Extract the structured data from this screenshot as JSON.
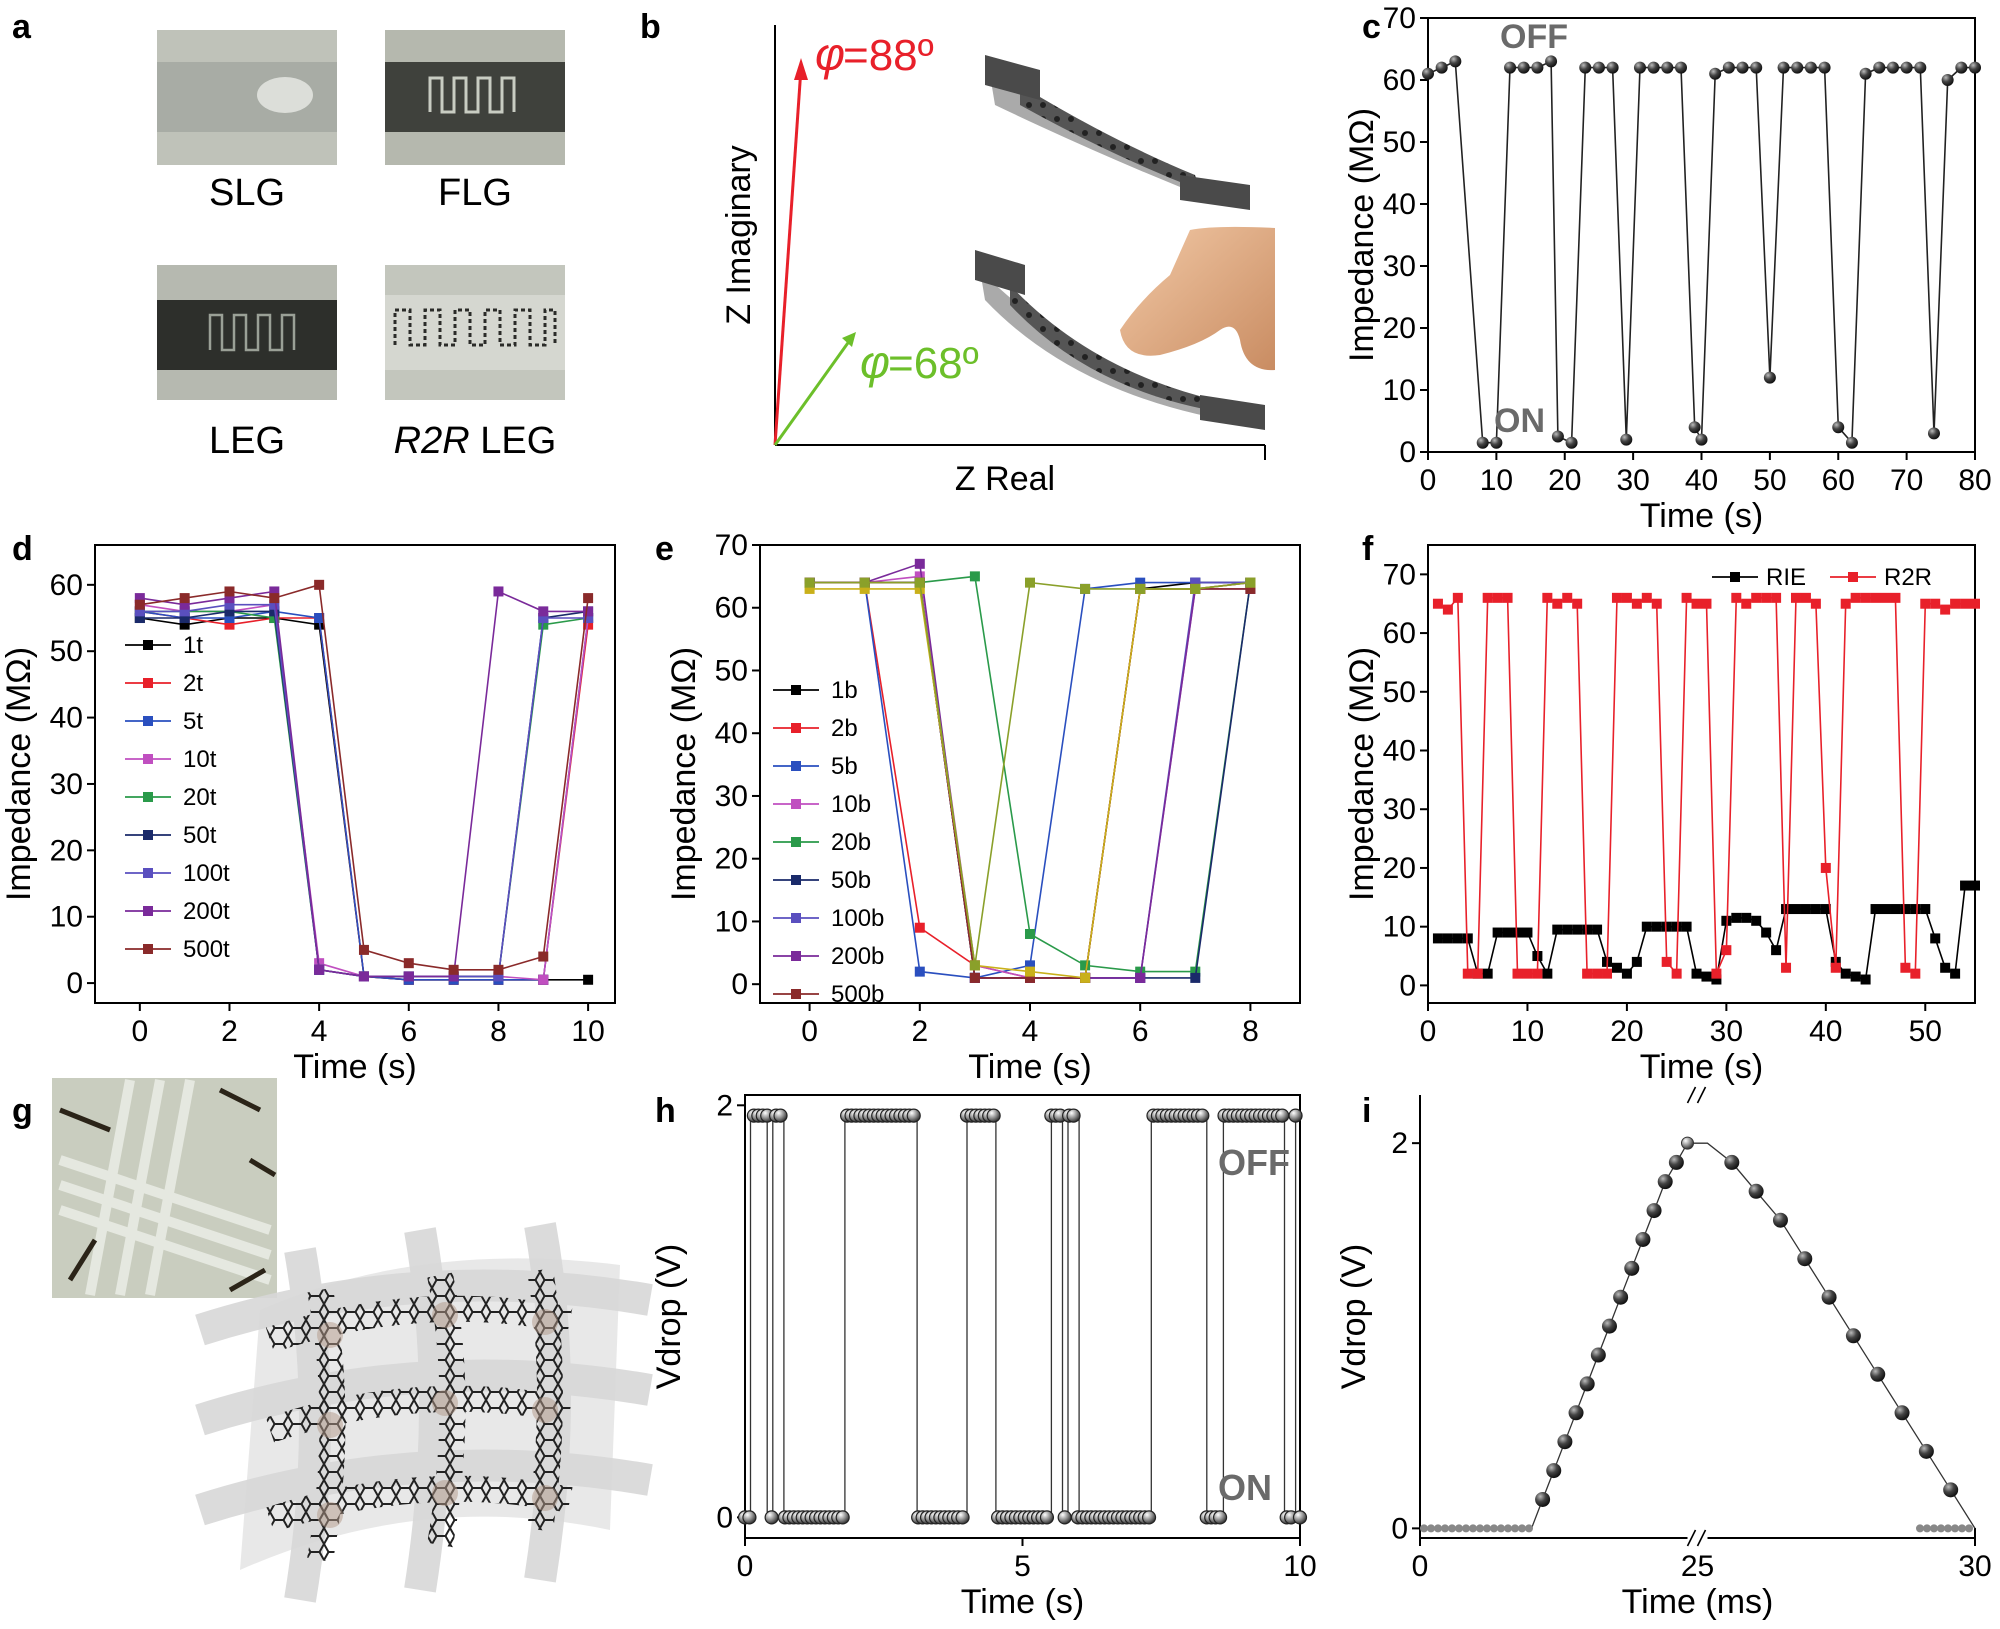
{
  "panels": {
    "a": {
      "label": "a",
      "captions": [
        "SLG",
        "FLG",
        "LEG"
      ],
      "caption_r2r_italic": "R2R",
      "caption_r2r_rest": " LEG"
    },
    "b": {
      "label": "b",
      "xlabel": "Z Real",
      "ylabel": "Z Imaginary",
      "phi1_sym": "φ",
      "phi1_val": "=88º",
      "phi2_sym": "φ",
      "phi2_val": "=68º",
      "phi1_color": "#e8202a",
      "phi2_color": "#6cbf2a"
    },
    "c": {
      "label": "c",
      "ann_off": "OFF",
      "ann_on": "ON"
    },
    "d": {
      "label": "d"
    },
    "e": {
      "label": "e"
    },
    "f": {
      "label": "f"
    },
    "g": {
      "label": "g"
    },
    "h": {
      "label": "h",
      "ann_off": "OFF",
      "ann_on": "ON"
    },
    "i": {
      "label": "i"
    }
  },
  "chart_data": [
    {
      "panel": "c",
      "type": "line",
      "xlabel": "Time (s)",
      "ylabel": "Impedance (MΩ)",
      "xlim": [
        0,
        80
      ],
      "ylim": [
        0,
        70
      ],
      "xticks": [
        0,
        10,
        20,
        30,
        40,
        50,
        60,
        70,
        80
      ],
      "yticks": [
        0,
        10,
        20,
        30,
        40,
        50,
        60,
        70
      ],
      "series": [
        {
          "color": "#222222",
          "x": [
            0,
            2,
            4,
            8,
            10,
            12,
            14,
            16,
            18,
            19,
            21,
            23,
            25,
            27,
            29,
            31,
            33,
            35,
            37,
            39,
            40,
            42,
            44,
            46,
            48,
            50,
            52,
            54,
            56,
            58,
            60,
            62,
            64,
            66,
            68,
            70,
            72,
            74,
            76,
            78,
            80
          ],
          "y": [
            61,
            62,
            63,
            1.5,
            1.5,
            62,
            62,
            62,
            63,
            2.5,
            1.5,
            62,
            62,
            62,
            2,
            62,
            62,
            62,
            62,
            4,
            2,
            61,
            62,
            62,
            62,
            12,
            62,
            62,
            62,
            62,
            4,
            1.5,
            61,
            62,
            62,
            62,
            62,
            3,
            60,
            62,
            62
          ]
        }
      ]
    },
    {
      "panel": "d",
      "type": "line",
      "xlabel": "Time (s)",
      "ylabel": "Impedance (MΩ)",
      "xlim": [
        -1,
        10.6
      ],
      "ylim": [
        -3,
        66
      ],
      "xticks": [
        0,
        2,
        4,
        6,
        8,
        10
      ],
      "yticks": [
        0,
        10,
        20,
        30,
        40,
        50,
        60
      ],
      "legend_position": "left",
      "series": [
        {
          "name": "1t",
          "color": "#000000",
          "x": [
            0,
            1,
            2,
            3,
            4,
            5,
            6,
            7,
            8,
            9,
            10
          ],
          "y": [
            55,
            54,
            55,
            55,
            54,
            1,
            0.5,
            0.5,
            0.5,
            0.5,
            0.5
          ]
        },
        {
          "name": "2t",
          "color": "#e8202a",
          "x": [
            0,
            1,
            2,
            3,
            4,
            5,
            6,
            7,
            8,
            9,
            10
          ],
          "y": [
            56,
            55,
            54,
            55,
            55,
            1,
            0.5,
            0.5,
            0.5,
            0.5,
            54
          ]
        },
        {
          "name": "5t",
          "color": "#2a4fbf",
          "x": [
            0,
            1,
            2,
            3,
            4,
            5,
            6,
            7,
            8,
            9,
            10
          ],
          "y": [
            56,
            55,
            55,
            56,
            55,
            1,
            0.5,
            0.5,
            0.5,
            0.5,
            55
          ]
        },
        {
          "name": "10t",
          "color": "#c04fc0",
          "x": [
            0,
            1,
            2,
            3,
            4,
            5,
            6,
            7,
            8,
            9,
            10
          ],
          "y": [
            57,
            56,
            56,
            57,
            3,
            1,
            1,
            1,
            1,
            0.5,
            55
          ]
        },
        {
          "name": "20t",
          "color": "#2a9a4a",
          "x": [
            0,
            1,
            2,
            3,
            4,
            5,
            6,
            7,
            8,
            9,
            10
          ],
          "y": [
            56,
            56,
            56,
            55,
            2,
            1,
            1,
            1,
            1,
            54,
            55
          ]
        },
        {
          "name": "50t",
          "color": "#1a2a6a",
          "x": [
            0,
            1,
            2,
            3,
            4,
            5,
            6,
            7,
            8,
            9,
            10
          ],
          "y": [
            55,
            55,
            56,
            56,
            2,
            1,
            1,
            1,
            1,
            55,
            56
          ]
        },
        {
          "name": "100t",
          "color": "#5a4fbf",
          "x": [
            0,
            1,
            2,
            3,
            4,
            5,
            6,
            7,
            8,
            9,
            10
          ],
          "y": [
            56,
            56,
            57,
            57,
            2,
            1,
            1,
            1,
            1,
            55,
            55
          ]
        },
        {
          "name": "200t",
          "color": "#7a2a9a",
          "x": [
            0,
            1,
            2,
            3,
            4,
            5,
            6,
            7,
            8,
            9,
            10
          ],
          "y": [
            58,
            57,
            58,
            59,
            2,
            1,
            1,
            1,
            59,
            56,
            56
          ]
        },
        {
          "name": "500t",
          "color": "#8a2a2a",
          "x": [
            0,
            1,
            2,
            3,
            4,
            5,
            6,
            7,
            8,
            9,
            10
          ],
          "y": [
            57,
            58,
            59,
            58,
            60,
            5,
            3,
            2,
            2,
            4,
            58
          ]
        }
      ]
    },
    {
      "panel": "e",
      "type": "line",
      "xlabel": "Time (s)",
      "ylabel": "Impedance (MΩ)",
      "xlim": [
        -0.9,
        8.9
      ],
      "ylim": [
        -3,
        70
      ],
      "xticks": [
        0,
        2,
        4,
        6,
        8
      ],
      "yticks": [
        0,
        10,
        20,
        30,
        40,
        50,
        60,
        70
      ],
      "legend_position": "left",
      "series": [
        {
          "name": "1b",
          "color": "#000000",
          "x": [
            0,
            1,
            2,
            3,
            4,
            5,
            6,
            7,
            8
          ],
          "y": [
            64,
            64,
            64,
            1,
            1,
            1,
            63,
            64,
            64
          ]
        },
        {
          "name": "2b",
          "color": "#e8202a",
          "x": [
            0,
            1,
            2,
            3,
            4,
            5,
            6,
            7,
            8
          ],
          "y": [
            64,
            64,
            9,
            3,
            1,
            1,
            63,
            63,
            64
          ]
        },
        {
          "name": "5b",
          "color": "#2a4fbf",
          "x": [
            0,
            1,
            2,
            3,
            4,
            5,
            6,
            7,
            8
          ],
          "y": [
            64,
            64,
            2,
            1,
            3,
            63,
            64,
            64,
            64
          ]
        },
        {
          "name": "10b",
          "color": "#c04fc0",
          "x": [
            0,
            1,
            2,
            3,
            4,
            5,
            6,
            7,
            8
          ],
          "y": [
            64,
            64,
            65,
            3,
            1,
            1,
            1,
            63,
            64
          ]
        },
        {
          "name": "20b",
          "color": "#2a9a4a",
          "x": [
            0,
            1,
            2,
            3,
            4,
            5,
            6,
            7,
            8
          ],
          "y": [
            64,
            64,
            64,
            65,
            8,
            3,
            2,
            2,
            64
          ]
        },
        {
          "name": "50b",
          "color": "#1a2a6a",
          "x": [
            0,
            1,
            2,
            3,
            4,
            5,
            6,
            7,
            8
          ],
          "y": [
            64,
            64,
            64,
            1,
            1,
            1,
            1,
            1,
            64
          ]
        },
        {
          "name": "100b",
          "color": "#5a4fbf",
          "x": [
            0,
            1,
            2,
            3,
            4,
            5,
            6,
            7,
            8
          ],
          "y": [
            64,
            64,
            64,
            1,
            1,
            1,
            1,
            64,
            64
          ]
        },
        {
          "name": "200b",
          "color": "#7a2a9a",
          "x": [
            0,
            1,
            2,
            3,
            4,
            5,
            6,
            7,
            8
          ],
          "y": [
            64,
            64,
            67,
            1,
            1,
            1,
            1,
            63,
            63
          ]
        },
        {
          "name": "500b",
          "color": "#8a2a2a",
          "x": [
            0,
            1,
            2,
            3,
            4,
            5,
            6,
            7,
            8
          ],
          "y": [
            64,
            64,
            64,
            1,
            1,
            1,
            63,
            63,
            63
          ]
        },
        {
          "name": "",
          "color": "#c9b01a",
          "x": [
            0,
            1,
            2,
            3,
            4,
            5,
            6,
            7,
            8
          ],
          "y": [
            63,
            63,
            63,
            3,
            2,
            1,
            63,
            63,
            64
          ]
        },
        {
          "name": "",
          "color": "#8aa02a",
          "x": [
            0,
            1,
            2,
            3,
            4,
            5,
            6,
            7,
            8
          ],
          "y": [
            64,
            64,
            64,
            3,
            64,
            63,
            63,
            63,
            64
          ]
        }
      ]
    },
    {
      "panel": "f",
      "type": "line",
      "xlabel": "Time (s)",
      "ylabel": "Impedance (MΩ)",
      "xlim": [
        0,
        55
      ],
      "ylim": [
        -3,
        75
      ],
      "xticks": [
        0,
        10,
        20,
        30,
        40,
        50
      ],
      "yticks": [
        0,
        10,
        20,
        30,
        40,
        50,
        60,
        70
      ],
      "legend_position": "top-right",
      "series": [
        {
          "name": "RIE",
          "color": "#000000",
          "x": [
            1,
            2,
            3,
            4,
            5,
            6,
            7,
            8,
            9,
            10,
            11,
            12,
            13,
            14,
            15,
            16,
            17,
            18,
            19,
            20,
            21,
            22,
            23,
            24,
            25,
            26,
            27,
            28,
            29,
            30,
            31,
            32,
            33,
            34,
            35,
            36,
            37,
            38,
            39,
            40,
            41,
            42,
            43,
            44,
            45,
            46,
            47,
            48,
            49,
            50,
            51,
            52,
            53,
            54,
            55
          ],
          "y": [
            8,
            8,
            8,
            8,
            2,
            2,
            9,
            9,
            9,
            9,
            5,
            2,
            9.5,
            9.5,
            9.5,
            9.5,
            9.5,
            4,
            3,
            2,
            4,
            10,
            10,
            10,
            10,
            10,
            2,
            1.5,
            1,
            11,
            11.5,
            11.5,
            11,
            9,
            6,
            13,
            13,
            13,
            13,
            13,
            4,
            2,
            1.5,
            1,
            13,
            13,
            13,
            13,
            13,
            13,
            8,
            3,
            2,
            17,
            17
          ]
        },
        {
          "name": "R2R",
          "color": "#e8202a",
          "x": [
            1,
            2,
            3,
            4,
            5,
            6,
            7,
            8,
            9,
            10,
            11,
            12,
            13,
            14,
            15,
            16,
            17,
            18,
            19,
            20,
            21,
            22,
            23,
            24,
            25,
            26,
            27,
            28,
            29,
            30,
            31,
            32,
            33,
            34,
            35,
            36,
            37,
            38,
            39,
            40,
            41,
            42,
            43,
            44,
            45,
            46,
            47,
            48,
            49,
            50,
            51,
            52,
            53,
            54,
            55
          ],
          "y": [
            65,
            64,
            66,
            2,
            2,
            66,
            66,
            66,
            2,
            2,
            2,
            66,
            65,
            66,
            65,
            2,
            2,
            2,
            66,
            66,
            65,
            66,
            65,
            4,
            2,
            66,
            65,
            65,
            2,
            6,
            66,
            65,
            66,
            66,
            66,
            3,
            66,
            66,
            65,
            20,
            3,
            65,
            66,
            66,
            66,
            66,
            66,
            3,
            2,
            65,
            65,
            64,
            65,
            65,
            65
          ]
        }
      ]
    },
    {
      "panel": "h",
      "type": "scatter",
      "xlabel": "Time (s)",
      "ylabel": "Vdrop (V)",
      "xlim": [
        0,
        10
      ],
      "ylim": [
        -0.1,
        2.05
      ],
      "xticks": [
        0,
        5,
        10
      ],
      "yticks": [
        0,
        2
      ],
      "high_intervals": [
        [
          0.1,
          0.4
        ],
        [
          0.5,
          0.7
        ],
        [
          1.8,
          3.1
        ],
        [
          4.0,
          4.5
        ],
        [
          5.5,
          5.7
        ],
        [
          5.8,
          6.0
        ],
        [
          7.3,
          8.3
        ],
        [
          8.6,
          9.7
        ],
        [
          9.9,
          10
        ]
      ],
      "low_level": 0.0,
      "high_level": 1.95
    },
    {
      "panel": "i",
      "type": "scatter",
      "xlabel": "Time (ms)",
      "ylabel": "Vdrop (V)",
      "xlim": [
        0,
        30
      ],
      "ylim": [
        -0.05,
        2.25
      ],
      "xticks": [
        0,
        25,
        30
      ],
      "yticks": [
        0,
        2
      ],
      "axis_break": "//",
      "x": [
        0,
        0.5,
        1,
        1.5,
        2,
        2.5,
        3,
        3.5,
        4,
        4.5,
        5,
        5.5,
        6,
        6.5,
        7,
        7.5,
        8,
        8.5,
        9,
        9.5,
        10,
        10.5,
        11,
        11.5,
        12,
        24.5,
        25,
        25.5,
        26,
        26.5,
        27,
        27.5,
        28,
        28.5,
        29,
        29.5,
        30
      ],
      "y": [
        0,
        0,
        0,
        0,
        0,
        0,
        0,
        0,
        0,
        0,
        0,
        0.15,
        0.3,
        0.45,
        0.6,
        0.75,
        0.9,
        1.05,
        1.2,
        1.35,
        1.5,
        1.65,
        1.8,
        1.9,
        2.0,
        2.0,
        1.9,
        1.75,
        1.6,
        1.4,
        1.2,
        1.0,
        0.8,
        0.6,
        0.4,
        0.2,
        0
      ]
    }
  ]
}
